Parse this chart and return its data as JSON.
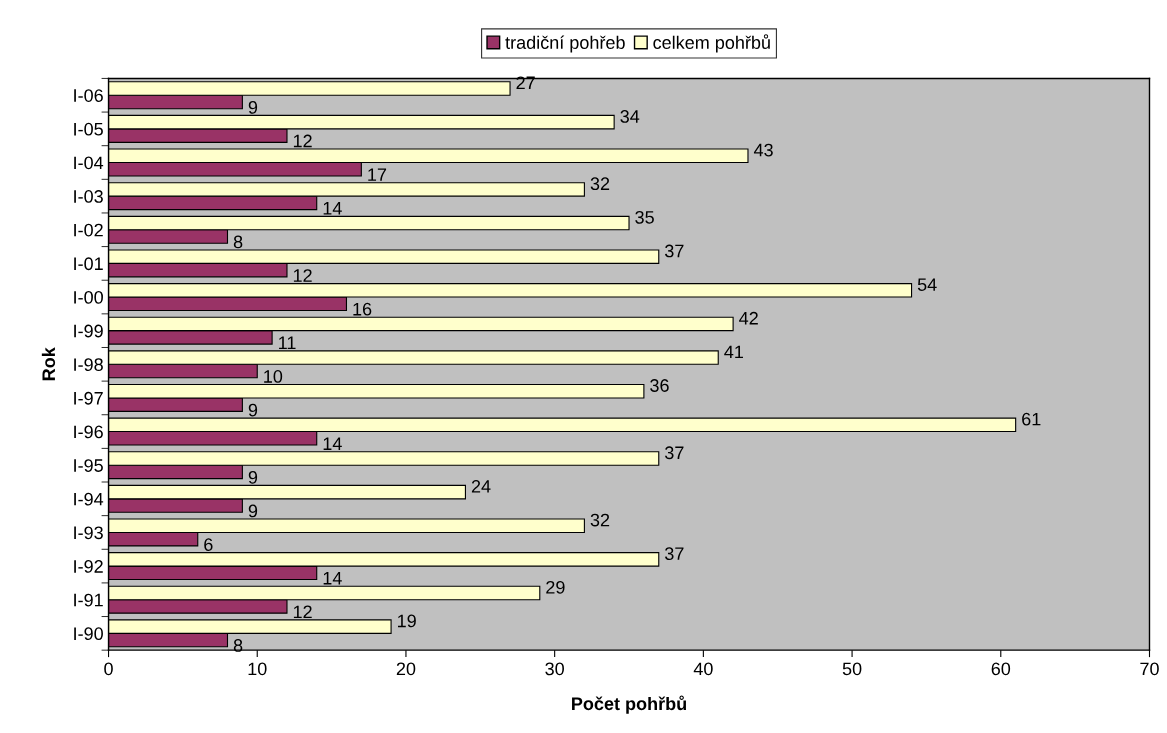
{
  "chart_data": {
    "type": "bar",
    "orientation": "horizontal",
    "xlabel": "Počet pohřbů",
    "ylabel": "Rok",
    "categories": [
      "I-06",
      "I-05",
      "I-04",
      "I-03",
      "I-02",
      "I-01",
      "I-00",
      "I-99",
      "I-98",
      "I-97",
      "I-96",
      "I-95",
      "I-94",
      "I-93",
      "I-92",
      "I-91",
      "I-90"
    ],
    "series": [
      {
        "name": "tradiční pohřeb",
        "color": "#993366",
        "values": [
          9,
          12,
          17,
          14,
          8,
          12,
          16,
          11,
          10,
          9,
          14,
          9,
          9,
          6,
          14,
          12,
          8
        ]
      },
      {
        "name": "celkem pohřbů",
        "color": "#ffffcc",
        "values": [
          27,
          34,
          43,
          32,
          35,
          37,
          54,
          42,
          41,
          36,
          61,
          37,
          24,
          32,
          37,
          29,
          19
        ]
      }
    ],
    "xlim": [
      0,
      70
    ],
    "xticks": [
      0,
      10,
      20,
      30,
      40,
      50,
      60,
      70
    ],
    "data_labels": true,
    "grid": false,
    "legend": "top"
  }
}
